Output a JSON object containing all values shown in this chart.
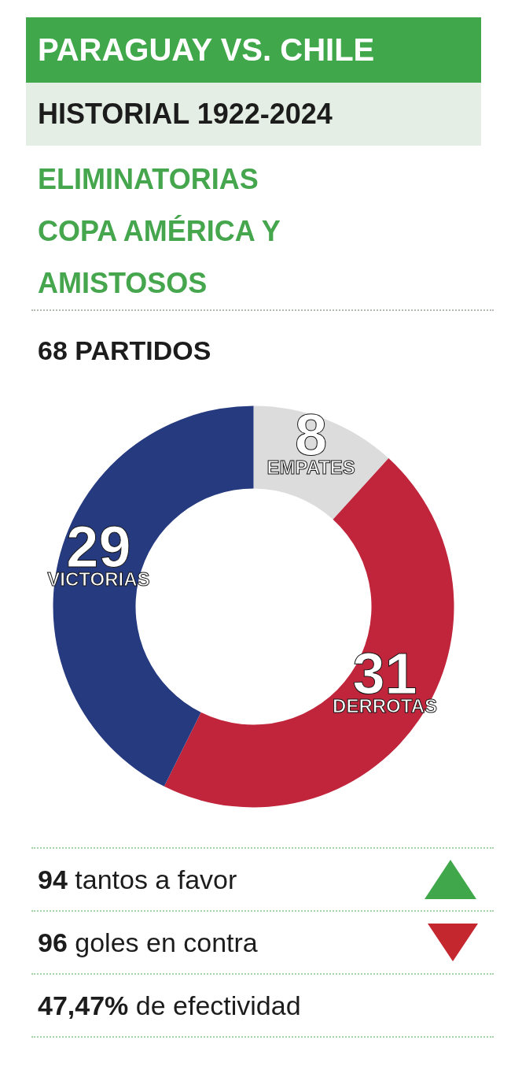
{
  "chart_data": {
    "type": "donut",
    "title": "PARAGUAY VS. CHILE",
    "subtitle": "HISTORIAL 1922-2024",
    "annotations": [
      "ELIMINATORIAS COPA AMÉRICA Y AMISTOSOS",
      "68 PARTIDOS",
      "94 tantos a favor",
      "96 goles en contra",
      "47,47% de efectividad"
    ],
    "categories": [
      "EMPATES",
      "DERROTAS",
      "VICTORIAS"
    ],
    "values": [
      8,
      31,
      29
    ],
    "colors": [
      "#dcdcdc",
      "#c1253b",
      "#263a80"
    ],
    "data_labels": true
  }
}
